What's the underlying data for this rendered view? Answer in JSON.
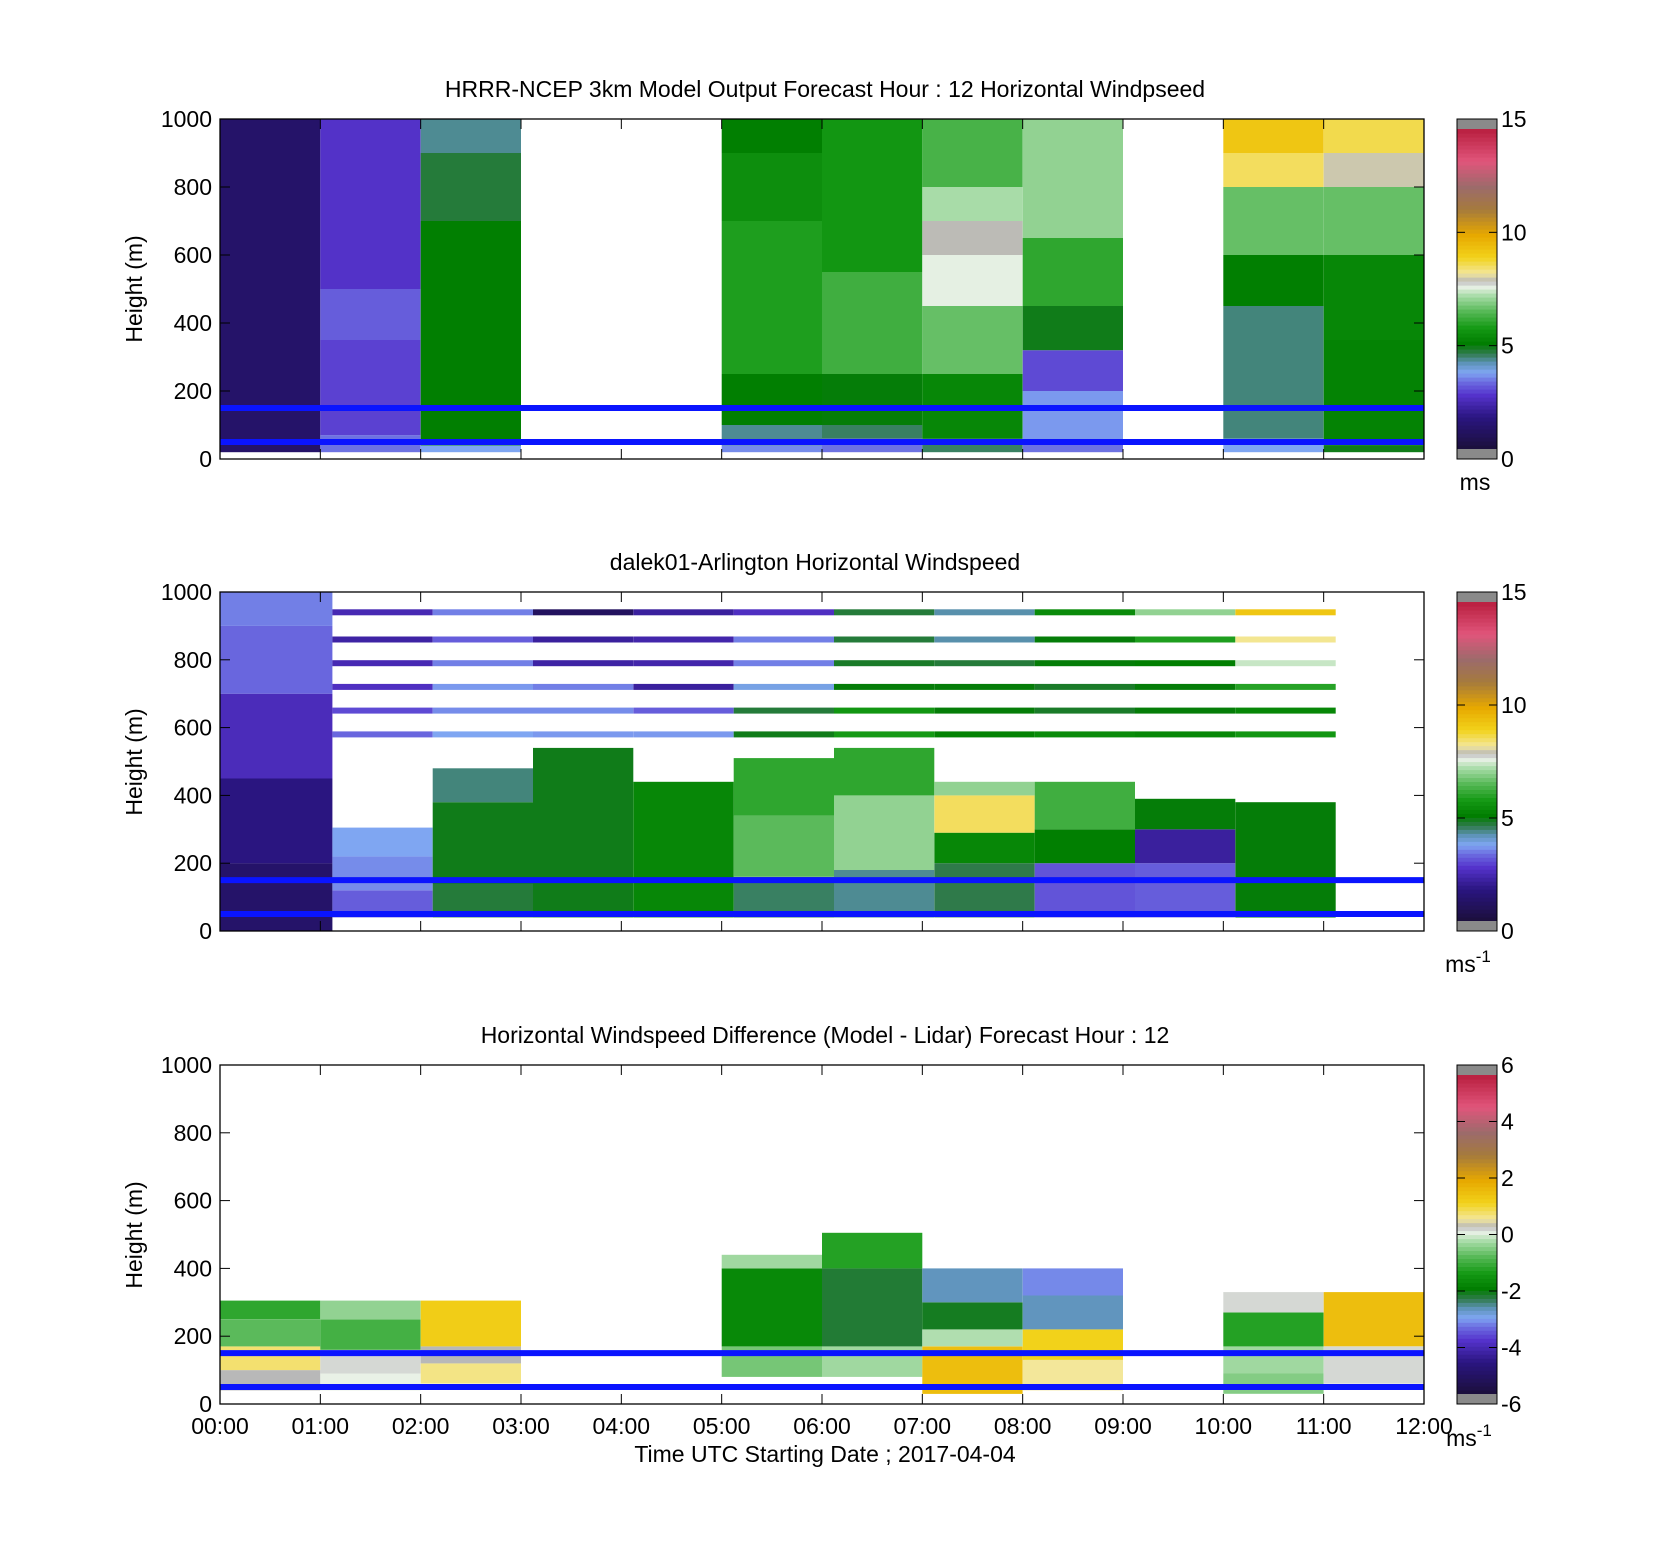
{
  "figure": {
    "xlabel": "Time UTC  Starting Date ; 2017-04-04",
    "xticks": [
      "00:00",
      "01:00",
      "02:00",
      "03:00",
      "04:00",
      "05:00",
      "06:00",
      "07:00",
      "08:00",
      "09:00",
      "10:00",
      "11:00",
      "12:00"
    ]
  },
  "chart_data": [
    {
      "type": "heatmap",
      "title": "HRRR-NCEP 3km Model Output   Forecast Hour : 12 Horizontal Windpseed",
      "ylabel": "Height (m)",
      "ylim": [
        0,
        1000
      ],
      "yticks": [
        0,
        200,
        400,
        600,
        800,
        1000
      ],
      "xlim": [
        0,
        12
      ],
      "colorbar": {
        "min": 0,
        "max": 15,
        "ticks": [
          0,
          5,
          10,
          15
        ],
        "unit": "ms"
      },
      "reference_lines_m": [
        150,
        50
      ],
      "columns": [
        {
          "x": [
            0,
            1
          ],
          "cells": [
            [
              20,
              1000,
              1.0
            ]
          ]
        },
        {
          "x": [
            1,
            2
          ],
          "cells": [
            [
              20,
              70,
              3.2
            ],
            [
              70,
              350,
              2.7
            ],
            [
              350,
              500,
              3.0
            ],
            [
              500,
              1000,
              2.5
            ]
          ]
        },
        {
          "x": [
            2,
            3
          ],
          "cells": [
            [
              20,
              40,
              3.6
            ],
            [
              40,
              700,
              5.0
            ],
            [
              700,
              900,
              4.6
            ],
            [
              900,
              1000,
              4.2
            ]
          ]
        },
        {
          "x": [
            5,
            6
          ],
          "cells": [
            [
              20,
              40,
              3.4
            ],
            [
              40,
              100,
              4.2
            ],
            [
              100,
              250,
              5.0
            ],
            [
              250,
              700,
              5.8
            ],
            [
              700,
              900,
              5.4
            ],
            [
              900,
              1000,
              5.0
            ]
          ]
        },
        {
          "x": [
            6,
            7
          ],
          "cells": [
            [
              20,
              60,
              3.2
            ],
            [
              60,
              100,
              4.4
            ],
            [
              100,
              250,
              4.9
            ],
            [
              250,
              550,
              6.2
            ],
            [
              550,
              1000,
              5.6
            ]
          ]
        },
        {
          "x": [
            7,
            8
          ],
          "cells": [
            [
              20,
              60,
              4.4
            ],
            [
              60,
              250,
              5.2
            ],
            [
              250,
              450,
              6.6
            ],
            [
              450,
              600,
              7.6
            ],
            [
              600,
              700,
              7.9
            ],
            [
              700,
              800,
              7.2
            ],
            [
              800,
              1000,
              6.3
            ]
          ]
        },
        {
          "x": [
            8,
            9
          ],
          "cells": [
            [
              20,
              50,
              3.2
            ],
            [
              50,
              200,
              3.5
            ],
            [
              200,
              320,
              2.8
            ],
            [
              320,
              450,
              4.8
            ],
            [
              450,
              650,
              6.0
            ],
            [
              650,
              1000,
              7.0
            ]
          ]
        },
        {
          "x": [
            10,
            11
          ],
          "cells": [
            [
              20,
              60,
              3.6
            ],
            [
              60,
              450,
              4.3
            ],
            [
              450,
              600,
              5.0
            ],
            [
              600,
              800,
              6.6
            ],
            [
              800,
              900,
              8.6
            ],
            [
              900,
              1000,
              9.3
            ]
          ]
        },
        {
          "x": [
            11,
            12
          ],
          "cells": [
            [
              20,
              40,
              4.8
            ],
            [
              40,
              350,
              5.1
            ],
            [
              350,
              600,
              5.2
            ],
            [
              600,
              800,
              6.6
            ],
            [
              800,
              900,
              8.0
            ],
            [
              900,
              1000,
              8.7
            ]
          ]
        }
      ]
    },
    {
      "type": "heatmap",
      "title": "dalek01-Arlington  Horizontal Windspeed",
      "ylabel": "Height (m)",
      "ylim": [
        0,
        1000
      ],
      "yticks": [
        0,
        200,
        400,
        600,
        800,
        1000
      ],
      "xlim": [
        0,
        12
      ],
      "colorbar": {
        "min": 0,
        "max": 15,
        "ticks": [
          0,
          5,
          10,
          15
        ],
        "unit": "ms",
        "unit_exp": "-1"
      },
      "reference_lines_m": [
        150,
        50
      ],
      "columns": [
        {
          "x": [
            0,
            1.12
          ],
          "cells": [
            [
              0,
              200,
              1.0
            ],
            [
              200,
              450,
              1.5
            ],
            [
              450,
              700,
              2.3
            ],
            [
              700,
              900,
              3.1
            ],
            [
              900,
              1000,
              3.3
            ]
          ]
        },
        {
          "x": [
            1.12,
            2.12
          ],
          "cells": [
            [
              40,
              120,
              3.0
            ],
            [
              120,
              220,
              3.4
            ],
            [
              220,
              305,
              3.6
            ]
          ]
        },
        {
          "x": [
            2.12,
            3.12
          ],
          "cells": [
            [
              40,
              140,
              4.6
            ],
            [
              140,
              380,
              4.8
            ],
            [
              380,
              480,
              4.3
            ]
          ]
        },
        {
          "x": [
            3.12,
            4.12
          ],
          "cells": [
            [
              40,
              540,
              4.8
            ]
          ]
        },
        {
          "x": [
            4.12,
            5.12
          ],
          "cells": [
            [
              40,
              440,
              5.2
            ]
          ]
        },
        {
          "x": [
            5.12,
            6.12
          ],
          "cells": [
            [
              40,
              160,
              4.4
            ],
            [
              160,
              340,
              6.5
            ],
            [
              340,
              510,
              6.0
            ]
          ]
        },
        {
          "x": [
            6.12,
            7.12
          ],
          "cells": [
            [
              40,
              180,
              4.2
            ],
            [
              180,
              400,
              7.0
            ],
            [
              400,
              540,
              6.0
            ]
          ]
        },
        {
          "x": [
            7.12,
            8.12
          ],
          "cells": [
            [
              40,
              200,
              4.5
            ],
            [
              200,
              290,
              5.2
            ],
            [
              290,
              400,
              8.6
            ],
            [
              400,
              440,
              7.0
            ]
          ]
        },
        {
          "x": [
            8.12,
            9.12
          ],
          "cells": [
            [
              40,
              200,
              2.9
            ],
            [
              200,
              300,
              5.0
            ],
            [
              300,
              440,
              6.2
            ]
          ]
        },
        {
          "x": [
            9.12,
            10.12
          ],
          "cells": [
            [
              40,
              200,
              3.0
            ],
            [
              200,
              300,
              1.9
            ],
            [
              300,
              390,
              4.9
            ]
          ]
        },
        {
          "x": [
            10.12,
            11.12
          ],
          "cells": [
            [
              40,
              380,
              4.9
            ]
          ]
        }
      ],
      "thin_layers_m": [
        940,
        860,
        790,
        720,
        650,
        580
      ],
      "thin_layer_values": [
        [
          2.2,
          3.3,
          0.8,
          1.9,
          2.4,
          4.6,
          4.1,
          5.3,
          7.0,
          9.3
        ],
        [
          2.0,
          3.0,
          1.9,
          2.1,
          3.3,
          4.6,
          4.1,
          4.9,
          5.8,
          8.3
        ],
        [
          2.2,
          3.3,
          2.0,
          2.1,
          3.3,
          4.7,
          4.6,
          4.9,
          5.0,
          7.4
        ],
        [
          2.4,
          3.5,
          3.3,
          1.9,
          3.7,
          4.9,
          4.9,
          4.7,
          4.9,
          5.9
        ],
        [
          2.8,
          3.4,
          3.4,
          3.0,
          4.6,
          5.6,
          4.9,
          4.7,
          4.9,
          5.2
        ],
        [
          3.1,
          3.6,
          3.5,
          3.5,
          4.8,
          5.7,
          5.1,
          5.3,
          5.2,
          5.6
        ]
      ]
    },
    {
      "type": "heatmap",
      "title": "Horizontal Windspeed Difference (Model - Lidar) Forecast Hour : 12",
      "ylabel": "Height (m)",
      "ylim": [
        0,
        1000
      ],
      "yticks": [
        0,
        200,
        400,
        600,
        800,
        1000
      ],
      "xlim": [
        0,
        12
      ],
      "colorbar": {
        "min": -6,
        "max": 6,
        "ticks": [
          -6,
          -4,
          -2,
          0,
          2,
          4,
          6
        ],
        "unit": "ms",
        "unit_exp": "-1"
      },
      "reference_lines_m": [
        150,
        50
      ],
      "columns": [
        {
          "x": [
            0,
            1
          ],
          "cells": [
            [
              40,
              100,
              0.3
            ],
            [
              100,
              170,
              0.8
            ],
            [
              170,
              250,
              -0.8
            ],
            [
              250,
              305,
              -1.2
            ]
          ]
        },
        {
          "x": [
            1,
            2
          ],
          "cells": [
            [
              40,
              90,
              0.1
            ],
            [
              90,
              160,
              0.2
            ],
            [
              160,
              250,
              -1.0
            ],
            [
              250,
              305,
              -0.4
            ]
          ]
        },
        {
          "x": [
            2,
            3
          ],
          "cells": [
            [
              60,
              120,
              0.7
            ],
            [
              120,
              170,
              0.3
            ],
            [
              170,
              305,
              1.3
            ]
          ]
        },
        {
          "x": [
            5,
            6
          ],
          "cells": [
            [
              80,
              170,
              -0.6
            ],
            [
              170,
              400,
              -1.8
            ],
            [
              400,
              440,
              -0.3
            ]
          ]
        },
        {
          "x": [
            6,
            7
          ],
          "cells": [
            [
              80,
              170,
              -0.3
            ],
            [
              170,
              400,
              -2.3
            ],
            [
              400,
              505,
              -1.3
            ]
          ]
        },
        {
          "x": [
            7,
            8
          ],
          "cells": [
            [
              30,
              170,
              1.6
            ],
            [
              170,
              220,
              -0.2
            ],
            [
              220,
              300,
              -2.2
            ],
            [
              300,
              400,
              -2.8
            ]
          ]
        },
        {
          "x": [
            8,
            9
          ],
          "cells": [
            [
              40,
              130,
              0.6
            ],
            [
              130,
              220,
              1.2
            ],
            [
              220,
              320,
              -2.8
            ],
            [
              320,
              400,
              -3.3
            ]
          ]
        },
        {
          "x": [
            10,
            11
          ],
          "cells": [
            [
              30,
              90,
              -0.5
            ],
            [
              90,
              170,
              -0.3
            ],
            [
              170,
              270,
              -1.3
            ],
            [
              270,
              330,
              0.2
            ]
          ]
        },
        {
          "x": [
            11,
            12
          ],
          "cells": [
            [
              60,
              170,
              0.2
            ],
            [
              170,
              330,
              1.6
            ]
          ]
        }
      ]
    }
  ]
}
